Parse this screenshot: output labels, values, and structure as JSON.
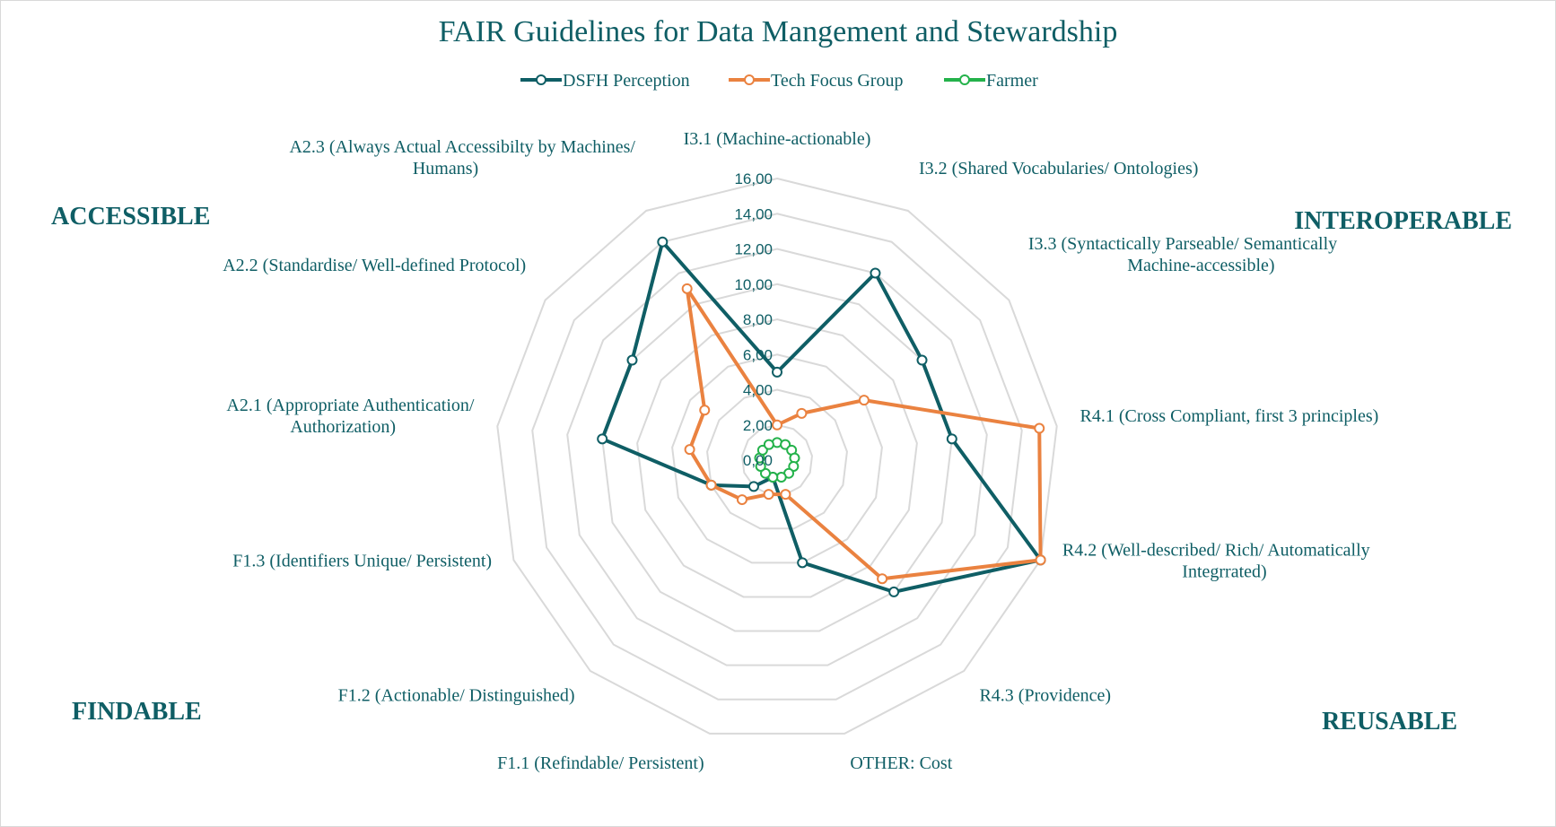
{
  "chart_data": {
    "type": "radar",
    "title": "FAIR Guidelines for Data Mangement and Stewardship",
    "categories": [
      "I3.1 (Machine-actionable)",
      "I3.2 (Shared Vocabularies/ Ontologies)",
      "I3.3 (Syntactically Parseable/ Semantically Machine-accessible)",
      "R4.1 (Cross Compliant, first 3 principles)",
      "R4.2 (Well-described/ Rich/ Automatically Integrrated)",
      "R4.3 (Providence)",
      "OTHER: Cost",
      "F1.1 (Refindable/ Persistent)",
      "F1.2 (Actionable/ Distinguished)",
      "F1.3 (Identifiers Unique/ Persistent)",
      "A2.1 (Appropriate Authentication/ Authorization)",
      "A2.2 (Standardise/ Well-defined Protocol)",
      "A2.3 (Always Actual Accessibilty by Machines/ Humans)"
    ],
    "category_lines": [
      [
        "I3.1 (Machine-actionable)"
      ],
      [
        "I3.2 (Shared Vocabularies/ Ontologies)"
      ],
      [
        "I3.3 (Syntactically Parseable/ Semantically",
        "Machine-accessible)"
      ],
      [
        "R4.1 (Cross Compliant, first 3 principles)"
      ],
      [
        "R4.2 (Well-described/ Rich/ Automatically",
        "Integrrated)"
      ],
      [
        "R4.3 (Providence)"
      ],
      [
        "OTHER: Cost"
      ],
      [
        "F1.1 (Refindable/ Persistent)"
      ],
      [
        "F1.2 (Actionable/ Distinguished)"
      ],
      [
        "F1.3 (Identifiers Unique/ Persistent)"
      ],
      [
        "A2.1 (Appropriate Authentication/",
        "Authorization)"
      ],
      [
        "A2.2 (Standardise/ Well-defined Protocol)"
      ],
      [
        "A2.3 (Always Actual Accessibilty by Machines/",
        "Humans)"
      ]
    ],
    "series": [
      {
        "name": "DSFH Perception",
        "color": "#0f5e65",
        "values": [
          5,
          12,
          10,
          10,
          16,
          10,
          6,
          1,
          2,
          4,
          10,
          10,
          14
        ]
      },
      {
        "name": "Tech Focus Group",
        "color": "#ea8240",
        "values": [
          2,
          3,
          6,
          15,
          16,
          9,
          2,
          2,
          3,
          4,
          5,
          5,
          11
        ]
      },
      {
        "name": "Farmer",
        "color": "#24b24b",
        "values": [
          1,
          1,
          1,
          1,
          1,
          1,
          1,
          1,
          1,
          1,
          1,
          1,
          1
        ]
      }
    ],
    "rlim": [
      0,
      16
    ],
    "ticks": [
      "0,00",
      "2,00",
      "4,00",
      "6,00",
      "8,00",
      "10,00",
      "12,00",
      "14,00",
      "16,00"
    ],
    "grid": true,
    "legend": "top-center",
    "quadrant_labels": [
      "ACCESSIBLE",
      "INTEROPERABLE",
      "FINDABLE",
      "REUSABLE"
    ]
  }
}
